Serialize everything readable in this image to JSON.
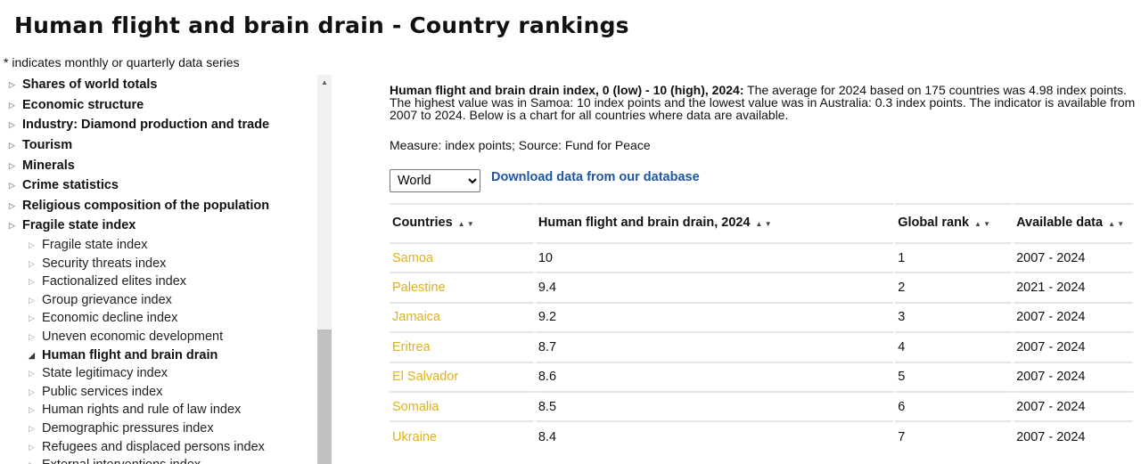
{
  "title": "Human flight and brain drain - Country rankings",
  "note": "* indicates monthly or quarterly data series",
  "sidebar": {
    "top_items": [
      "Shares of world totals",
      "Economic structure",
      "Industry: Diamond production and trade",
      "Tourism",
      "Minerals",
      "Crime statistics",
      "Religious composition of the population",
      "Fragile state index"
    ],
    "sub_items": [
      "Fragile state index",
      "Security threats index",
      "Factionalized elites index",
      "Group grievance index",
      "Economic decline index",
      "Uneven economic development",
      "Human flight and brain drain",
      "State legitimacy index",
      "Public services index",
      "Human rights and rule of law index",
      "Demographic pressures index",
      "Refugees and displaced persons index",
      "External interventions index"
    ],
    "active": "Human flight and brain drain"
  },
  "main": {
    "desc_bold": "Human flight and brain drain index, 0 (low) - 10 (high), 2024:",
    "desc": " The average for 2024 based on 175 countries was 4.98 index points. The highest value was in Samoa: 10 index points and the lowest value was in Australia: 0.3 index points. The indicator is available from 2007 to 2024. Below is a chart for all countries where data are available.",
    "measure": "Measure: index points; Source: Fund for Peace",
    "region_select": "World",
    "download_link": "Download data from our database",
    "columns": [
      "Countries",
      "Human flight and brain drain, 2024",
      "Global rank",
      "Available data"
    ],
    "rows": [
      [
        "Samoa",
        "10",
        "1",
        "2007 - 2024"
      ],
      [
        "Palestine",
        "9.4",
        "2",
        "2021 - 2024"
      ],
      [
        "Jamaica",
        "9.2",
        "3",
        "2007 - 2024"
      ],
      [
        "Eritrea",
        "8.7",
        "4",
        "2007 - 2024"
      ],
      [
        "El Salvador",
        "8.6",
        "5",
        "2007 - 2024"
      ],
      [
        "Somalia",
        "8.5",
        "6",
        "2007 - 2024"
      ],
      [
        "Ukraine",
        "8.4",
        "7",
        "2007 - 2024"
      ]
    ]
  },
  "colors": {
    "country_link": "#dfb21a",
    "download_link": "#1f55a5"
  }
}
